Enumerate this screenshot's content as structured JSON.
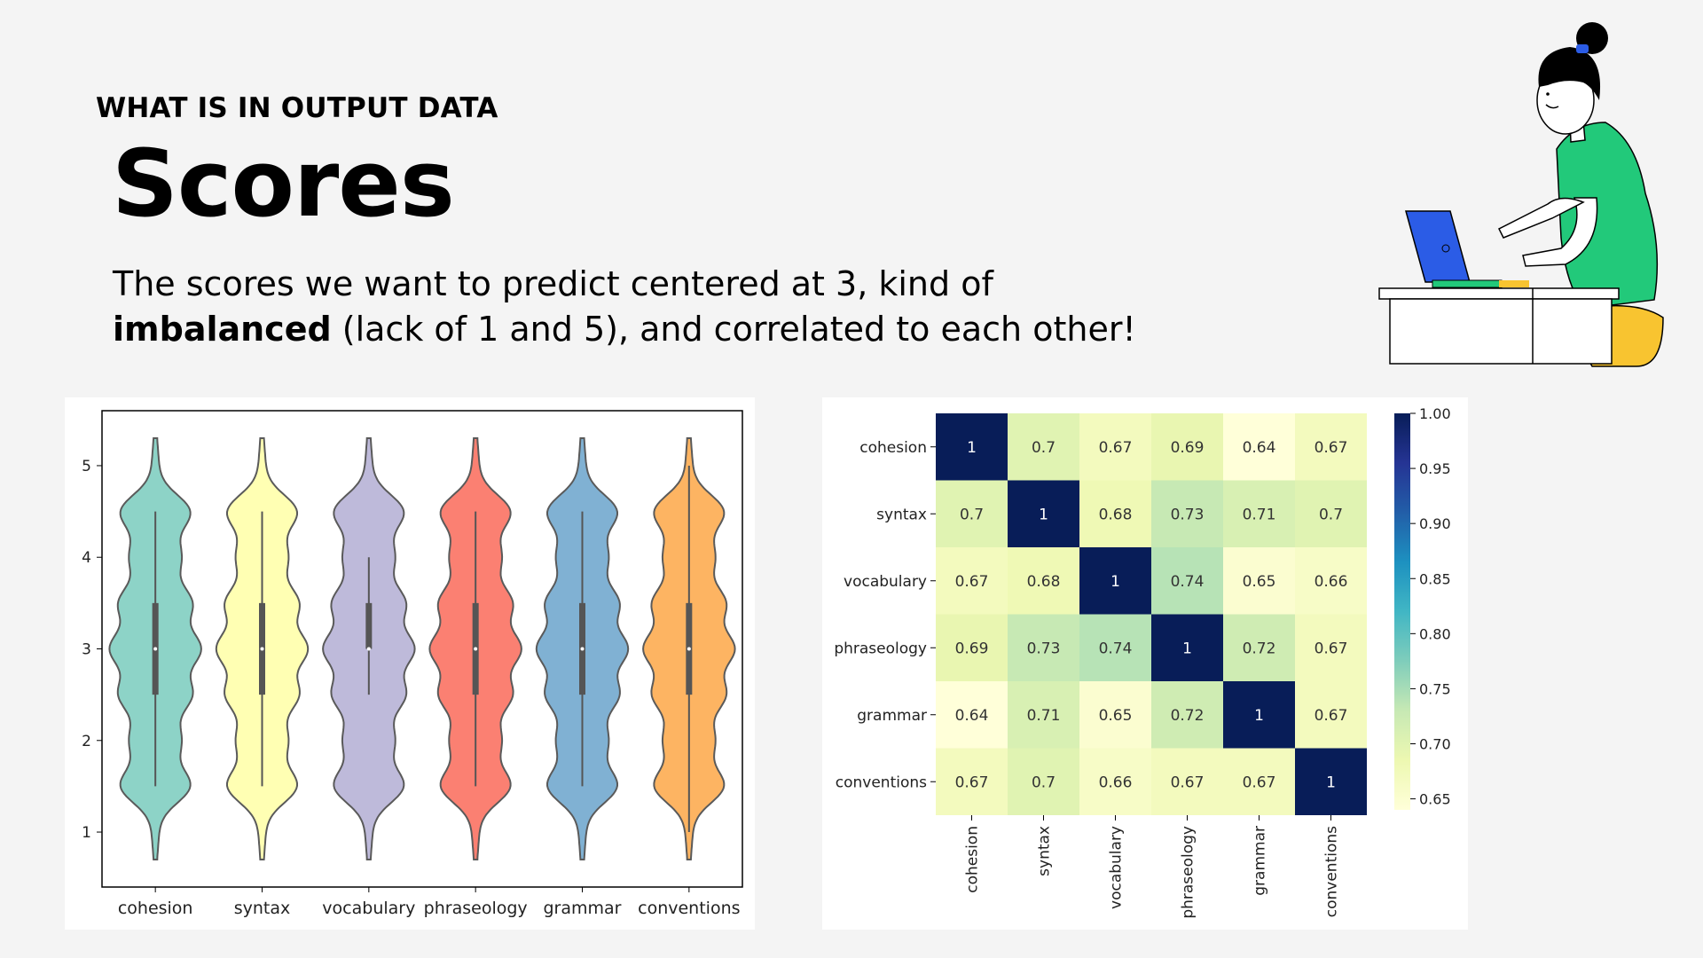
{
  "slide": {
    "eyebrow": "WHAT IS IN OUTPUT DATA",
    "title": "Scores",
    "description_line1": "The scores we want to predict centered at 3, kind of",
    "description_bold": "imbalanced",
    "description_line2_rest": " (lack of 1 and 5), and correlated to each other!"
  },
  "colors": {
    "background": "#f4f4f4",
    "violin_palette": [
      "#8dd3c7",
      "#ffffb3",
      "#bebada",
      "#fb8072",
      "#80b1d3",
      "#fdb462"
    ],
    "heatmap_colormap": "YlGnBu"
  },
  "illustration": {
    "icon": "person-typing-on-laptop-illustration"
  },
  "chart_data": [
    {
      "type": "violin",
      "categories": [
        "cohesion",
        "syntax",
        "vocabulary",
        "phraseology",
        "grammar",
        "conventions"
      ],
      "yticks": [
        1,
        2,
        3,
        4,
        5
      ],
      "ylim": [
        0.4,
        5.6
      ],
      "series": [
        {
          "name": "cohesion",
          "min": 0.7,
          "max": 5.3,
          "q1": 2.5,
          "median": 3.0,
          "q3": 3.5,
          "whisker_low": 1.5,
          "whisker_high": 4.5
        },
        {
          "name": "syntax",
          "min": 0.7,
          "max": 5.3,
          "q1": 2.5,
          "median": 3.0,
          "q3": 3.5,
          "whisker_low": 1.5,
          "whisker_high": 4.5
        },
        {
          "name": "vocabulary",
          "min": 0.7,
          "max": 5.3,
          "q1": 3.0,
          "median": 3.0,
          "q3": 3.5,
          "whisker_low": 2.5,
          "whisker_high": 4.0
        },
        {
          "name": "phraseology",
          "min": 0.7,
          "max": 5.3,
          "q1": 2.5,
          "median": 3.0,
          "q3": 3.5,
          "whisker_low": 1.5,
          "whisker_high": 4.5
        },
        {
          "name": "grammar",
          "min": 0.7,
          "max": 5.3,
          "q1": 2.5,
          "median": 3.0,
          "q3": 3.5,
          "whisker_low": 1.5,
          "whisker_high": 4.5
        },
        {
          "name": "conventions",
          "min": 0.7,
          "max": 5.3,
          "q1": 2.5,
          "median": 3.0,
          "q3": 3.5,
          "whisker_low": 1.0,
          "whisker_high": 5.0
        }
      ]
    },
    {
      "type": "heatmap",
      "rows": [
        "cohesion",
        "syntax",
        "vocabulary",
        "phraseology",
        "grammar",
        "conventions"
      ],
      "columns": [
        "cohesion",
        "syntax",
        "vocabulary",
        "phraseology",
        "grammar",
        "conventions"
      ],
      "values": [
        [
          1,
          0.7,
          0.67,
          0.69,
          0.64,
          0.67
        ],
        [
          0.7,
          1,
          0.68,
          0.73,
          0.71,
          0.7
        ],
        [
          0.67,
          0.68,
          1,
          0.74,
          0.65,
          0.66
        ],
        [
          0.69,
          0.73,
          0.74,
          1,
          0.72,
          0.67
        ],
        [
          0.64,
          0.71,
          0.65,
          0.72,
          1,
          0.67
        ],
        [
          0.67,
          0.7,
          0.66,
          0.67,
          0.67,
          1
        ]
      ],
      "colorbar": {
        "min": 0.64,
        "max": 1.0,
        "ticks": [
          "1.00",
          "0.95",
          "0.90",
          "0.85",
          "0.80",
          "0.75",
          "0.70",
          "0.65"
        ]
      }
    }
  ]
}
